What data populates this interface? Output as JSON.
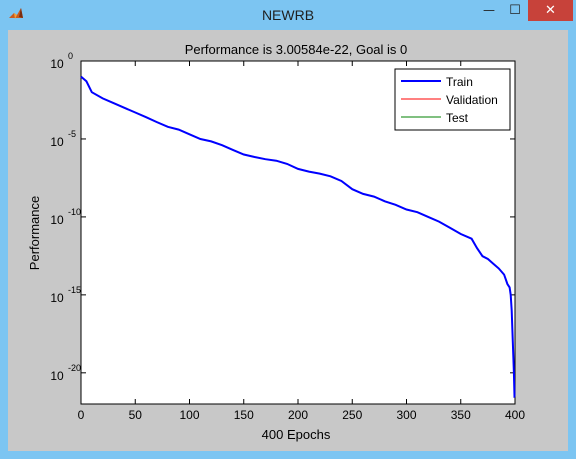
{
  "window": {
    "title": "NEWRB",
    "minimize_glyph": "—",
    "maximize_glyph": "☐",
    "close_glyph": "✕",
    "app_icon": "matlab-icon"
  },
  "colors": {
    "titlebar": "#7cc5f2",
    "figure_bg": "#c8c8c8",
    "train": "#0000ff",
    "validation": "#ff0000",
    "test": "#008000",
    "close_button": "#c7423a"
  },
  "chart_data": {
    "type": "line",
    "title": "Performance is 3.00584e-22, Goal is 0",
    "xlabel": "400 Epochs",
    "ylabel": "Performance",
    "xscale": "linear",
    "yscale": "log",
    "xlim": [
      0,
      400
    ],
    "ylim": [
      1e-22,
      1
    ],
    "xticks": [
      0,
      50,
      100,
      150,
      200,
      250,
      300,
      350,
      400
    ],
    "yticks": [
      {
        "value": 1,
        "base": "10",
        "exp": "0"
      },
      {
        "value": 1e-05,
        "base": "10",
        "exp": "-5"
      },
      {
        "value": 1e-10,
        "base": "10",
        "exp": "-10"
      },
      {
        "value": 1e-15,
        "base": "10",
        "exp": "-15"
      },
      {
        "value": 1e-20,
        "base": "10",
        "exp": "-20"
      }
    ],
    "grid": false,
    "legend_position": "top-right",
    "series": [
      {
        "name": "Train",
        "color": "#0000ff",
        "x": [
          0,
          5,
          10,
          20,
          30,
          40,
          50,
          60,
          70,
          80,
          90,
          100,
          110,
          120,
          130,
          140,
          150,
          160,
          170,
          180,
          190,
          200,
          210,
          220,
          230,
          240,
          250,
          260,
          270,
          280,
          290,
          300,
          310,
          320,
          330,
          340,
          350,
          360,
          365,
          370,
          375,
          380,
          385,
          390,
          393,
          395,
          396,
          397,
          398,
          399,
          399.5,
          400
        ],
        "y": [
          0.1,
          0.05,
          0.01,
          0.004,
          0.002,
          0.001,
          0.0005,
          0.00025,
          0.00012,
          6e-05,
          4e-05,
          2e-05,
          1e-05,
          7e-06,
          4e-06,
          2e-06,
          1e-06,
          7e-07,
          5e-07,
          4e-07,
          2.5e-07,
          1.2e-07,
          8e-08,
          6e-08,
          4e-08,
          2e-08,
          6e-09,
          3e-09,
          2e-09,
          1e-09,
          6e-10,
          3e-10,
          2e-10,
          1e-10,
          5e-11,
          2e-11,
          8e-12,
          4e-12,
          1e-12,
          3e-13,
          2e-13,
          1e-13,
          5e-14,
          2e-14,
          5e-15,
          3e-15,
          1e-15,
          1e-16,
          1e-18,
          1e-20,
          3e-22,
          3.00584e-22
        ]
      },
      {
        "name": "Validation",
        "color": "#ff0000",
        "x": [],
        "y": []
      },
      {
        "name": "Test",
        "color": "#008000",
        "x": [],
        "y": []
      }
    ]
  }
}
